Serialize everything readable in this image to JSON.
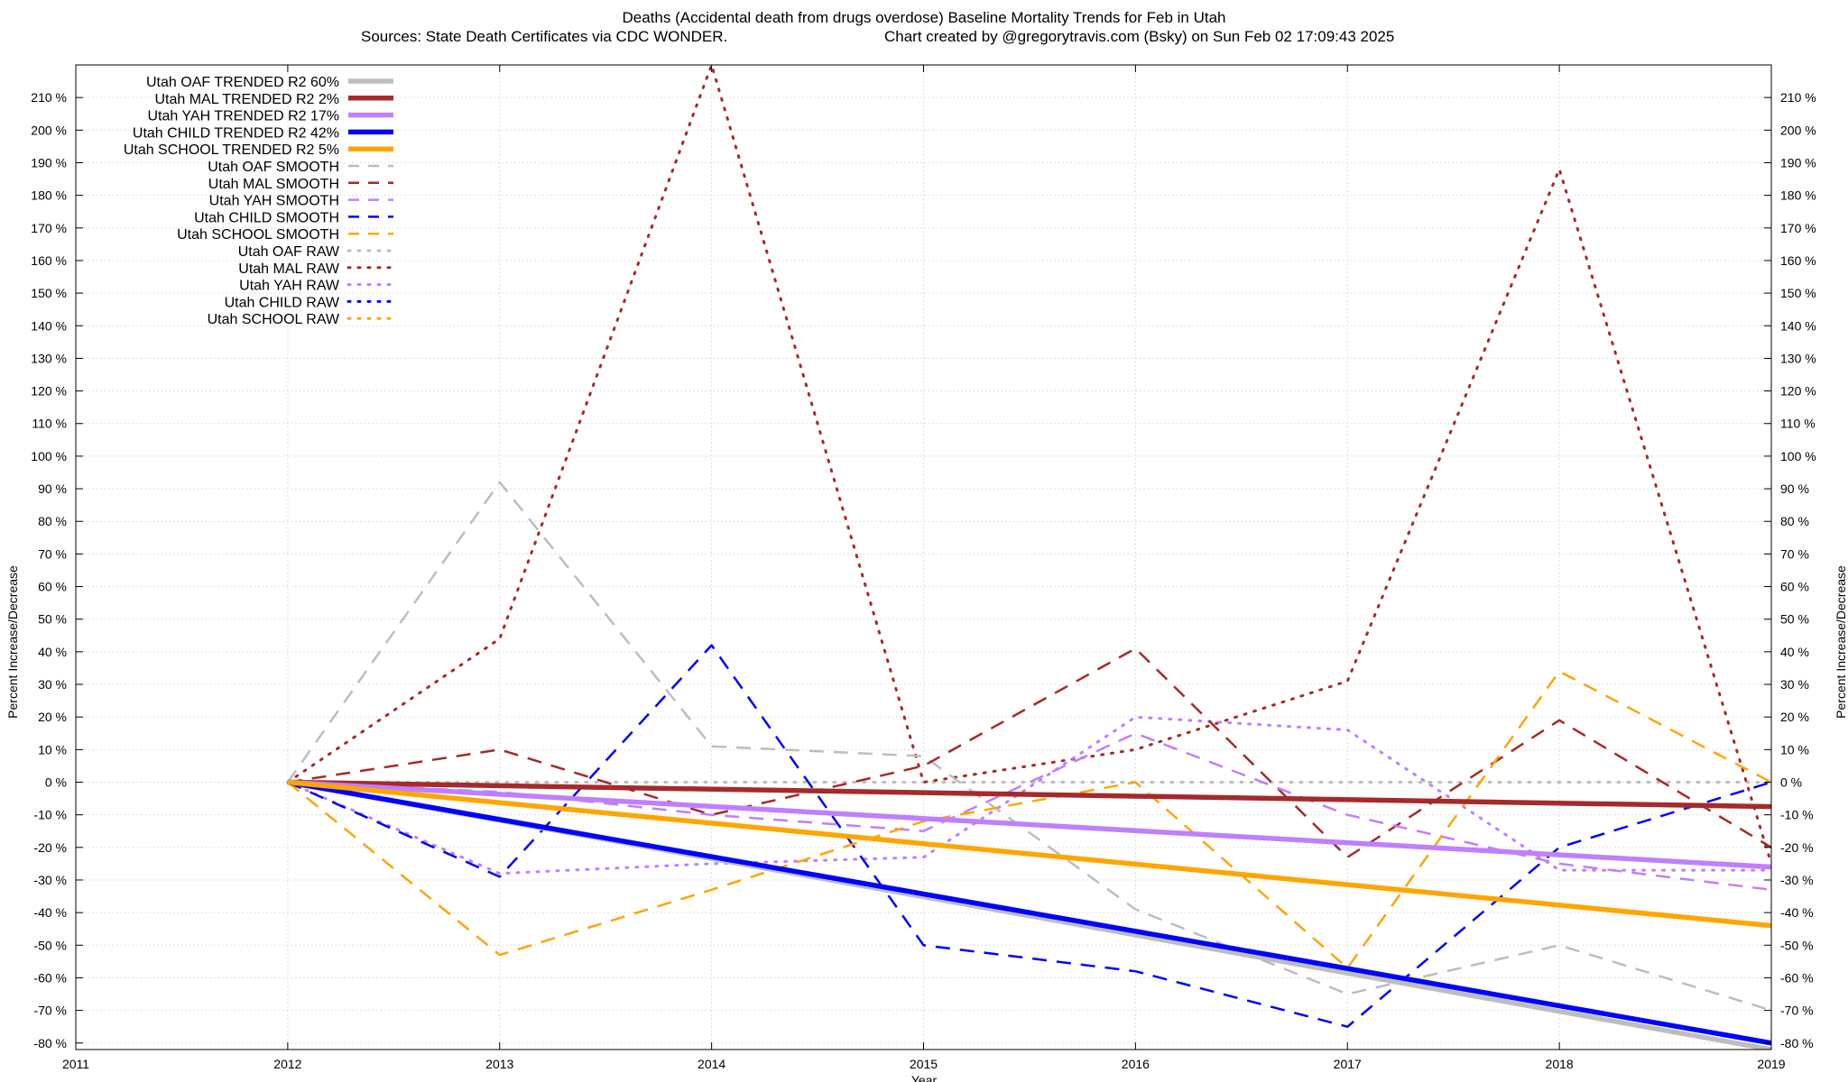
{
  "chart_data": {
    "type": "line",
    "title": "Deaths (Accidental death from drugs overdose)  Baseline Mortality Trends for Feb in Utah",
    "subtitle_left": "Sources: State Death Certificates via CDC WONDER.",
    "subtitle_right": "Chart created by @gregorytravis.com (Bsky) on Sun Feb 02 17:09:43 2025",
    "xlabel": "Year",
    "ylabel": "Percent Increase/Decrease",
    "y2label": "Percent Increase/Decrease",
    "xlim": [
      2011,
      2019
    ],
    "ylim": [
      -82,
      220
    ],
    "x_ticks": [
      "2011",
      "2012",
      "2013",
      "2014",
      "2015",
      "2016",
      "2017",
      "2018",
      "2019"
    ],
    "y_ticks": [
      {
        "v": -80,
        "label": "-80 %"
      },
      {
        "v": -70,
        "label": "-70 %"
      },
      {
        "v": -60,
        "label": "-60 %"
      },
      {
        "v": -50,
        "label": "-50 %"
      },
      {
        "v": -40,
        "label": "-40 %"
      },
      {
        "v": -30,
        "label": "-30 %"
      },
      {
        "v": -20,
        "label": "-20 %"
      },
      {
        "v": -10,
        "label": "-10 %"
      },
      {
        "v": 0,
        "label": "0 %"
      },
      {
        "v": 10,
        "label": "10 %"
      },
      {
        "v": 20,
        "label": "20 %"
      },
      {
        "v": 30,
        "label": "30 %"
      },
      {
        "v": 40,
        "label": "40 %"
      },
      {
        "v": 50,
        "label": "50 %"
      },
      {
        "v": 60,
        "label": "60 %"
      },
      {
        "v": 70,
        "label": "70 %"
      },
      {
        "v": 80,
        "label": "80 %"
      },
      {
        "v": 90,
        "label": "90 %"
      },
      {
        "v": 100,
        "label": "100 %"
      },
      {
        "v": 110,
        "label": "110 %"
      },
      {
        "v": 120,
        "label": "120 %"
      },
      {
        "v": 130,
        "label": "130 %"
      },
      {
        "v": 140,
        "label": "140 %"
      },
      {
        "v": 150,
        "label": "150 %"
      },
      {
        "v": 160,
        "label": "160 %"
      },
      {
        "v": 170,
        "label": "170 %"
      },
      {
        "v": 180,
        "label": "180 %"
      },
      {
        "v": 190,
        "label": "190 %"
      },
      {
        "v": 200,
        "label": "200 %"
      },
      {
        "v": 210,
        "label": "210 %"
      }
    ],
    "grid": true,
    "legend_position": "top-left",
    "series": [
      {
        "name": "Utah OAF TRENDED R2  60%",
        "style": "trend",
        "color": "#bdbdbd",
        "x": [
          2012,
          2019
        ],
        "y": [
          0,
          -82
        ]
      },
      {
        "name": "Utah MAL TRENDED R2   2%",
        "style": "trend",
        "color": "#a52a2a",
        "x": [
          2012,
          2019
        ],
        "y": [
          0,
          -7.5
        ]
      },
      {
        "name": "Utah YAH TRENDED R2  17%",
        "style": "trend",
        "color": "#bf7fff",
        "x": [
          2012,
          2019
        ],
        "y": [
          0,
          -26
        ]
      },
      {
        "name": "Utah CHILD TRENDED R2  42%",
        "style": "trend",
        "color": "#0000ff",
        "x": [
          2012,
          2019
        ],
        "y": [
          0,
          -80
        ]
      },
      {
        "name": "Utah SCHOOL TRENDED R2   5%",
        "style": "trend",
        "color": "#ffa500",
        "x": [
          2012,
          2019
        ],
        "y": [
          0,
          -44
        ]
      },
      {
        "name": "Utah OAF SMOOTH",
        "style": "smooth",
        "color": "#bdbdbd",
        "x": [
          2012,
          2013,
          2014,
          2015,
          2016,
          2017,
          2018,
          2019
        ],
        "y": [
          0,
          92,
          11,
          8,
          -39,
          -65,
          -50,
          -70
        ]
      },
      {
        "name": "Utah MAL SMOOTH",
        "style": "smooth",
        "color": "#a52a2a",
        "x": [
          2012,
          2013,
          2014,
          2015,
          2016,
          2017,
          2018,
          2019
        ],
        "y": [
          0,
          10,
          -10,
          5,
          41,
          -23,
          19,
          -20
        ]
      },
      {
        "name": "Utah YAH SMOOTH",
        "style": "smooth",
        "color": "#bf7fff",
        "x": [
          2012,
          2013,
          2014,
          2015,
          2016,
          2017,
          2018,
          2019
        ],
        "y": [
          0,
          -3,
          -10,
          -15,
          15,
          -10,
          -25,
          -33
        ]
      },
      {
        "name": "Utah CHILD SMOOTH",
        "style": "smooth",
        "color": "#0000ff",
        "x": [
          2012,
          2013,
          2014,
          2015,
          2016,
          2017,
          2018,
          2019
        ],
        "y": [
          0,
          -29,
          42,
          -50,
          -58,
          -75,
          -20,
          0
        ]
      },
      {
        "name": "Utah SCHOOL SMOOTH",
        "style": "smooth",
        "color": "#ffa500",
        "x": [
          2012,
          2013,
          2014,
          2015,
          2016,
          2017,
          2018,
          2019
        ],
        "y": [
          0,
          -53,
          -33,
          -12,
          0,
          -57,
          34,
          0
        ]
      },
      {
        "name": "Utah OAF RAW",
        "style": "raw",
        "color": "#bdbdbd",
        "x": [
          2012,
          2013,
          2014,
          2015,
          2016,
          2017,
          2018,
          2019
        ],
        "y": [
          0,
          0,
          0,
          0,
          0,
          0,
          0,
          0
        ]
      },
      {
        "name": "Utah MAL RAW",
        "style": "raw",
        "color": "#a52a2a",
        "x": [
          2012,
          2013,
          2014,
          2015,
          2016,
          2017,
          2018,
          2019
        ],
        "y": [
          0,
          44,
          220,
          0,
          10,
          31,
          188,
          -25
        ]
      },
      {
        "name": "Utah YAH RAW",
        "style": "raw",
        "color": "#bf7fff",
        "x": [
          2012,
          2013,
          2014,
          2015,
          2016,
          2017,
          2018,
          2019
        ],
        "y": [
          0,
          -28,
          -25,
          -23,
          20,
          16,
          -27,
          -27
        ]
      },
      {
        "name": "Utah CHILD RAW",
        "style": "raw",
        "color": "#0000ff",
        "x": [
          2012
        ],
        "y": [
          0
        ]
      },
      {
        "name": "Utah SCHOOL RAW",
        "style": "raw",
        "color": "#ffa500",
        "x": [
          2012
        ],
        "y": [
          0
        ]
      }
    ]
  }
}
